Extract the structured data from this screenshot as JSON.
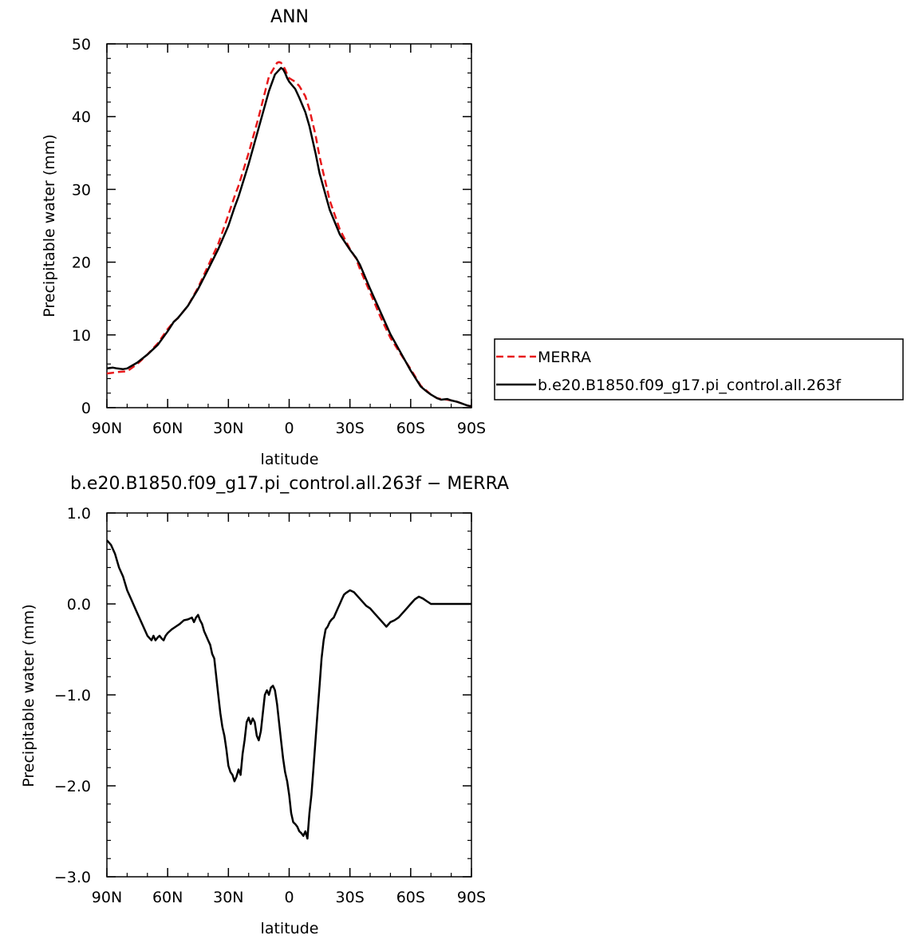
{
  "chart_data": [
    {
      "type": "line",
      "title": "ANN",
      "xlabel": "latitude",
      "ylabel": "Precipitable water (mm)",
      "xlim": [
        90,
        -90
      ],
      "ylim": [
        0,
        50
      ],
      "x_ticks": [
        90,
        60,
        30,
        0,
        -30,
        -60,
        -90
      ],
      "x_tick_labels": [
        "90N",
        "60N",
        "30N",
        "0",
        "30S",
        "60S",
        "90S"
      ],
      "y_ticks": [
        0,
        10,
        20,
        30,
        40,
        50
      ],
      "y_tick_labels": [
        "0",
        "10",
        "20",
        "30",
        "40",
        "50"
      ],
      "grid": false,
      "legend": "right",
      "series": [
        {
          "name": "MERRA",
          "color": "#e8191b",
          "dash": "dashed",
          "x": [
            90,
            87,
            85,
            80,
            75,
            70,
            65,
            60,
            57,
            55,
            50,
            45,
            40,
            35,
            30,
            27,
            25,
            20,
            15,
            10,
            6,
            5,
            4,
            3,
            2,
            1,
            0,
            -3,
            -5,
            -8,
            -10,
            -13,
            -15,
            -20,
            -25,
            -30,
            -33,
            -35,
            -40,
            -45,
            -50,
            -55,
            -60,
            -65,
            -68,
            -70,
            -73,
            -75,
            -78,
            -80,
            -83,
            -85,
            -88,
            -90
          ],
          "y": [
            4.7,
            4.8,
            4.9,
            5.0,
            6.0,
            7.3,
            8.8,
            10.8,
            11.8,
            12.3,
            14.0,
            16.5,
            19.5,
            22.5,
            26.5,
            29.0,
            30.5,
            35.0,
            40.0,
            45.5,
            47.4,
            47.5,
            47.4,
            47.0,
            46.5,
            45.8,
            45.3,
            44.8,
            44.2,
            42.8,
            41.0,
            37.5,
            34.5,
            28.5,
            24.5,
            21.8,
            20.5,
            19.0,
            15.8,
            12.5,
            9.6,
            7.4,
            5.3,
            3.0,
            2.3,
            1.8,
            1.3,
            1.2,
            1.1,
            1.0,
            0.8,
            0.6,
            0.3,
            0.2
          ]
        },
        {
          "name": "b.e20.B1850.f09_g17.pi_control.all.263f",
          "color": "#000000",
          "dash": "solid",
          "x": [
            90,
            87,
            85,
            82,
            80,
            75,
            70,
            65,
            60,
            57,
            55,
            50,
            45,
            40,
            35,
            30,
            27,
            25,
            20,
            15,
            10,
            7,
            5,
            4,
            3,
            2,
            1,
            0,
            -3,
            -5,
            -8,
            -10,
            -13,
            -15,
            -20,
            -25,
            -30,
            -33,
            -35,
            -40,
            -45,
            -50,
            -55,
            -60,
            -65,
            -68,
            -70,
            -73,
            -75,
            -78,
            -80,
            -83,
            -85,
            -88,
            -90
          ],
          "y": [
            5.4,
            5.5,
            5.4,
            5.3,
            5.4,
            6.2,
            7.3,
            8.6,
            10.5,
            11.8,
            12.3,
            14.0,
            16.3,
            19.0,
            21.8,
            25.0,
            27.5,
            29.0,
            33.5,
            38.5,
            43.5,
            45.8,
            46.4,
            46.7,
            46.5,
            46.0,
            45.3,
            44.8,
            43.8,
            42.6,
            40.6,
            38.7,
            35.0,
            32.2,
            27.2,
            23.8,
            21.7,
            20.6,
            19.6,
            16.3,
            13.2,
            10.1,
            7.6,
            5.1,
            2.9,
            2.2,
            1.8,
            1.3,
            1.1,
            1.2,
            1.0,
            0.8,
            0.6,
            0.3,
            0.2
          ]
        }
      ]
    },
    {
      "type": "line",
      "title": "b.e20.B1850.f09_g17.pi_control.all.263f  −  MERRA",
      "xlabel": "latitude",
      "ylabel": "Precipitable water (mm)",
      "xlim": [
        90,
        -90
      ],
      "ylim": [
        -3.0,
        1.0
      ],
      "x_ticks": [
        90,
        60,
        30,
        0,
        -30,
        -60,
        -90
      ],
      "x_tick_labels": [
        "90N",
        "60N",
        "30N",
        "0",
        "30S",
        "60S",
        "90S"
      ],
      "y_ticks": [
        -3.0,
        -2.0,
        -1.0,
        0.0,
        1.0
      ],
      "y_tick_labels": [
        "−3.0",
        "−2.0",
        "−1.0",
        "0.0",
        "1.0"
      ],
      "grid": false,
      "series": [
        {
          "name": "",
          "color": "#000000",
          "dash": "solid",
          "x": [
            90,
            88,
            86,
            84,
            82,
            80,
            78,
            76,
            74,
            72,
            70,
            68,
            67,
            66,
            65,
            64,
            63,
            62,
            61,
            60,
            58,
            56,
            54,
            52,
            50,
            48,
            47,
            46,
            45,
            44,
            43,
            42,
            41,
            40,
            39,
            38,
            37,
            36,
            35,
            34,
            33,
            32,
            31,
            30,
            29,
            28,
            27,
            26,
            25,
            24,
            23,
            22,
            21,
            20,
            19,
            18,
            17,
            16,
            15,
            14,
            13,
            12,
            11,
            10,
            9,
            8,
            7,
            6,
            5,
            4,
            3,
            2,
            1,
            0,
            -1,
            -2,
            -3,
            -4,
            -5,
            -6,
            -7,
            -8,
            -9,
            -10,
            -11,
            -12,
            -13,
            -14,
            -15,
            -16,
            -17,
            -18,
            -19,
            -20,
            -21,
            -22,
            -23,
            -24,
            -25,
            -26,
            -27,
            -28,
            -30,
            -32,
            -34,
            -36,
            -38,
            -40,
            -42,
            -44,
            -46,
            -48,
            -50,
            -52,
            -54,
            -56,
            -58,
            -60,
            -62,
            -64,
            -66,
            -68,
            -70,
            -72,
            -74,
            -76,
            -78,
            -80,
            -82,
            -84,
            -86,
            -88,
            -90
          ],
          "y": [
            0.7,
            0.65,
            0.55,
            0.4,
            0.3,
            0.15,
            0.05,
            -0.05,
            -0.15,
            -0.25,
            -0.35,
            -0.4,
            -0.35,
            -0.4,
            -0.37,
            -0.35,
            -0.38,
            -0.4,
            -0.35,
            -0.32,
            -0.28,
            -0.25,
            -0.22,
            -0.18,
            -0.17,
            -0.15,
            -0.2,
            -0.15,
            -0.12,
            -0.18,
            -0.22,
            -0.3,
            -0.35,
            -0.4,
            -0.45,
            -0.55,
            -0.6,
            -0.8,
            -1.0,
            -1.2,
            -1.35,
            -1.45,
            -1.6,
            -1.78,
            -1.85,
            -1.88,
            -1.95,
            -1.9,
            -1.82,
            -1.88,
            -1.65,
            -1.5,
            -1.3,
            -1.25,
            -1.32,
            -1.26,
            -1.3,
            -1.45,
            -1.5,
            -1.4,
            -1.2,
            -1.0,
            -0.95,
            -1.0,
            -0.92,
            -0.9,
            -0.95,
            -1.1,
            -1.3,
            -1.5,
            -1.7,
            -1.85,
            -1.95,
            -2.1,
            -2.3,
            -2.4,
            -2.42,
            -2.45,
            -2.5,
            -2.52,
            -2.55,
            -2.5,
            -2.58,
            -2.3,
            -2.1,
            -1.8,
            -1.5,
            -1.2,
            -0.9,
            -0.6,
            -0.4,
            -0.28,
            -0.25,
            -0.2,
            -0.17,
            -0.15,
            -0.1,
            -0.05,
            0.0,
            0.05,
            0.1,
            0.12,
            0.15,
            0.13,
            0.08,
            0.03,
            -0.02,
            -0.05,
            -0.1,
            -0.15,
            -0.2,
            -0.25,
            -0.2,
            -0.18,
            -0.15,
            -0.1,
            -0.05,
            0.0,
            0.05,
            0.08,
            0.06,
            0.03,
            0.0,
            0.0,
            0.0,
            0.0,
            0.0,
            0.0,
            0.0,
            0.0,
            0.0,
            0.0,
            0.0
          ]
        }
      ]
    }
  ]
}
